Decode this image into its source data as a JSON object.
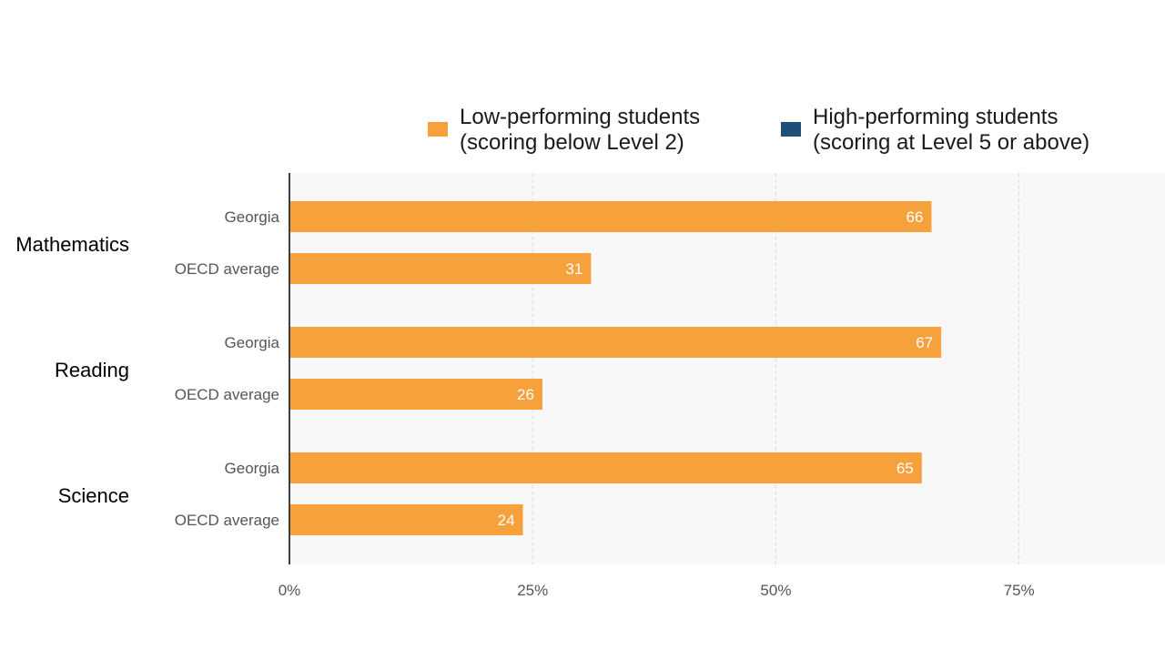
{
  "chart_data": {
    "type": "bar",
    "orientation": "horizontal",
    "groups": [
      {
        "label": "Mathematics",
        "rows": [
          {
            "label": "Georgia",
            "value": 66,
            "value_label": "66"
          },
          {
            "label": "OECD average",
            "value": 31,
            "value_label": "31"
          }
        ]
      },
      {
        "label": "Reading",
        "rows": [
          {
            "label": "Georgia",
            "value": 67,
            "value_label": "67"
          },
          {
            "label": "OECD average",
            "value": 26,
            "value_label": "26"
          }
        ]
      },
      {
        "label": "Science",
        "rows": [
          {
            "label": "Georgia",
            "value": 65,
            "value_label": "65"
          },
          {
            "label": "OECD average",
            "value": 24,
            "value_label": "24"
          }
        ]
      }
    ],
    "series": [
      {
        "name": "Low-performing students (scoring below Level 2)",
        "color": "#f7a13d"
      },
      {
        "name": "High-performing students (scoring at Level 5 or above)",
        "color": "#1f4e79"
      }
    ],
    "legend": {
      "position": "top",
      "items": [
        {
          "line1": "Low-performing students",
          "line2": "(scoring below Level 2)",
          "color": "#f7a13d"
        },
        {
          "line1": "High-performing students",
          "line2": "(scoring at Level 5 or above)",
          "color": "#1f4e79"
        }
      ]
    },
    "xlim": [
      0,
      90
    ],
    "xticks": [
      0,
      25,
      50,
      75
    ],
    "xtick_labels": [
      "0%",
      "25%",
      "50%",
      "75%"
    ],
    "grid": true,
    "colors": {
      "bar": "#f7a13d",
      "bar_label": "#ffffff",
      "grid": "#d9d9d9",
      "axis": "#000000",
      "plot_bg": "#f8f8f8",
      "category_text": "#555555",
      "group_text": "#000000"
    }
  }
}
